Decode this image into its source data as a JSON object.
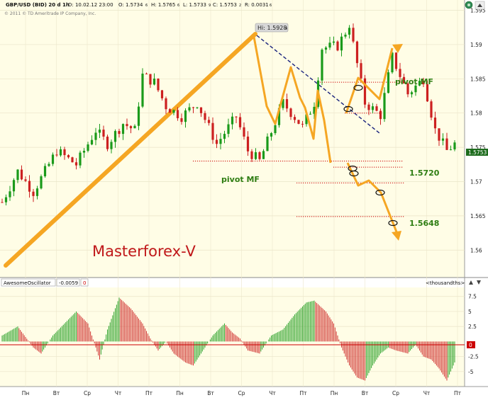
{
  "header": {
    "symbol": "GBP/USD (BID) 20 d 1h",
    "date": "D: 10.02.12 23:00",
    "open": "O: 1.5734",
    "open_sub": "6",
    "high": "H: 1.5765",
    "high_sub": "6",
    "low": "L: 1.5733",
    "low_sub": "9",
    "close": "C: 1.5753",
    "close_sub": "2",
    "range": "R: 0.0031",
    "range_sub": "6",
    "copyright": "© 2011 © TD Ameritrade IP Company, Inc."
  },
  "watermark": "Masterforex-V",
  "price_tag": "1.5753",
  "hi_label": "Hi: 1.5928",
  "hi_sub": "4",
  "annotations": {
    "pivot_top": "pivot MF",
    "pivot_bottom": "pivot MF",
    "level_1": "1.5720",
    "level_2": "1.5648"
  },
  "oscillator": {
    "name": "AwesomeOscillator",
    "value": "-0.0059",
    "marker": "0",
    "units": "<thousandths>",
    "zero_tag": "0"
  },
  "colors": {
    "bull": "#1a9a1a",
    "bear": "#cc2020",
    "orange": "#f5a623",
    "navy": "#1a237e",
    "pivot": "#cc0000",
    "bg": "#fffde6",
    "label_green": "#2e7d12",
    "watermark": "#c0181a"
  },
  "chart_data": [
    {
      "type": "candlestick",
      "title": "GBP/USD (BID) 20 d 1h",
      "ylim": [
        1.556,
        1.5965
      ],
      "y_ticks": [
        "1.595",
        "1.59",
        "1.585",
        "1.58",
        "1.575",
        "1.57",
        "1.565",
        "1.56"
      ],
      "y_tick_values": [
        1.595,
        1.59,
        1.585,
        1.58,
        1.575,
        1.57,
        1.565,
        1.56
      ],
      "x_ticks": [
        "Пн",
        "Вт",
        "Ср",
        "Чт",
        "Пт",
        "Пн",
        "Вт",
        "Ср",
        "Чт",
        "Пт",
        "Пн",
        "Вт",
        "Ср",
        "Чт",
        "Пт"
      ],
      "price_path": [
        [
          0,
          1.567
        ],
        [
          4,
          1.5715
        ],
        [
          8,
          1.5685
        ],
        [
          14,
          1.5745
        ],
        [
          19,
          1.5725
        ],
        [
          24,
          1.5775
        ],
        [
          27,
          1.5755
        ],
        [
          31,
          1.5785
        ],
        [
          34,
          1.5775
        ],
        [
          36,
          1.5855
        ],
        [
          39,
          1.5845
        ],
        [
          42,
          1.581
        ],
        [
          46,
          1.5795
        ],
        [
          50,
          1.5815
        ],
        [
          55,
          1.5755
        ],
        [
          60,
          1.5795
        ],
        [
          63,
          1.5745
        ],
        [
          66,
          1.573
        ],
        [
          72,
          1.5815
        ],
        [
          77,
          1.578
        ],
        [
          80,
          1.5815
        ],
        [
          82,
          1.5895
        ],
        [
          86,
          1.5898
        ],
        [
          89,
          1.5928
        ],
        [
          93,
          1.5815
        ],
        [
          97,
          1.5797
        ],
        [
          100,
          1.5882
        ],
        [
          104,
          1.5828
        ],
        [
          108,
          1.585
        ],
        [
          111,
          1.5775
        ],
        [
          114,
          1.5745
        ],
        [
          116,
          1.5755
        ]
      ],
      "high": 1.59284,
      "last": 1.5753,
      "pivot_lines": [
        1.5845,
        1.58,
        1.573,
        1.5721,
        1.5698,
        1.5649
      ],
      "levels_labeled": [
        1.572,
        1.5648
      ]
    },
    {
      "type": "bar",
      "title": "AwesomeOscillator",
      "ylim": [
        -7.5,
        9
      ],
      "y_ticks": [
        "7.5",
        "5",
        "2.5",
        "-2.5",
        "-5"
      ],
      "y_tick_values": [
        7.5,
        5,
        2.5,
        -2.5,
        -5
      ],
      "value": -0.0059,
      "osc_path": [
        [
          0,
          1
        ],
        [
          4,
          2.5
        ],
        [
          8,
          -1
        ],
        [
          10,
          -2
        ],
        [
          13,
          1
        ],
        [
          16,
          3
        ],
        [
          19,
          5
        ],
        [
          22,
          3
        ],
        [
          24,
          -1
        ],
        [
          25,
          -3
        ],
        [
          27,
          2
        ],
        [
          30,
          7.3
        ],
        [
          33,
          5.5
        ],
        [
          36,
          3
        ],
        [
          38,
          0.5
        ],
        [
          40,
          -1.5
        ],
        [
          42,
          0
        ],
        [
          44,
          -2
        ],
        [
          47,
          -3.5
        ],
        [
          49,
          -4
        ],
        [
          51,
          -2
        ],
        [
          54,
          1
        ],
        [
          57,
          3
        ],
        [
          59,
          1.5
        ],
        [
          61,
          0.5
        ],
        [
          63,
          -1.5
        ],
        [
          66,
          -2
        ],
        [
          69,
          1
        ],
        [
          72,
          2
        ],
        [
          75,
          4.5
        ],
        [
          78,
          6.5
        ],
        [
          80,
          6.8
        ],
        [
          83,
          5
        ],
        [
          85,
          3
        ],
        [
          87,
          -1
        ],
        [
          89,
          -4
        ],
        [
          91,
          -6
        ],
        [
          93,
          -6.5
        ],
        [
          95,
          -4
        ],
        [
          97,
          -2
        ],
        [
          99,
          -1
        ],
        [
          101,
          -1.5
        ],
        [
          104,
          -2
        ],
        [
          106,
          -0.5
        ],
        [
          108,
          -2.5
        ],
        [
          110,
          -3
        ],
        [
          112,
          -4.5
        ],
        [
          114,
          -6.5
        ],
        [
          116,
          -3.5
        ]
      ]
    }
  ]
}
